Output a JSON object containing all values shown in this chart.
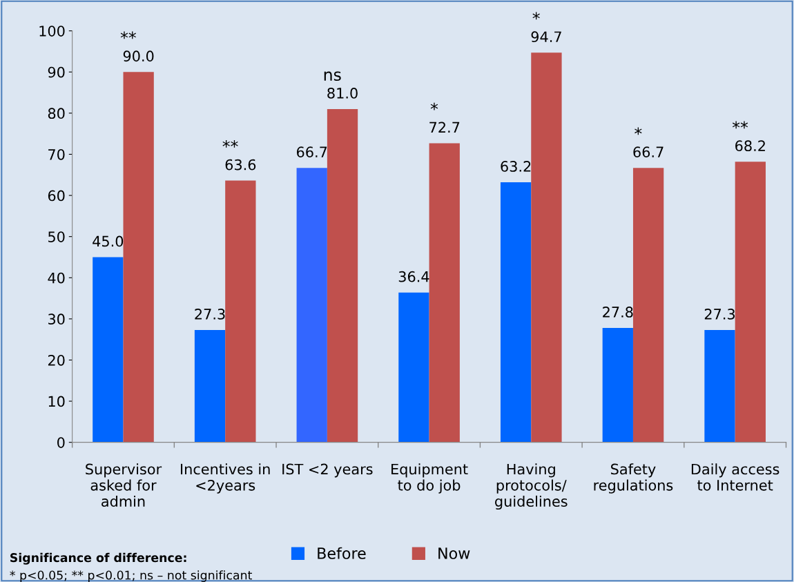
{
  "chart_data": {
    "type": "bar",
    "categories": [
      "Supervisor\nasked for\nadmin",
      "Incentives in\n<2years",
      "IST <2 years",
      "Equipment\nto do job",
      "Having\nprotocols/\nguidelines",
      "Safety\nregulations",
      "Daily access\nto Internet"
    ],
    "series": [
      {
        "name": "Before",
        "color": "#0066ff",
        "colors": [
          "#0066ff",
          "#0066ff",
          "#3366ff",
          "#0066ff",
          "#0066ff",
          "#0066ff",
          "#0066ff"
        ],
        "values": [
          45.0,
          27.3,
          66.7,
          36.4,
          63.2,
          27.8,
          27.3
        ],
        "value_labels": [
          "45.0",
          "27.3",
          "66.7",
          "36.4",
          "63.2",
          "27.8",
          "27.3"
        ]
      },
      {
        "name": "Now",
        "color": "#c0504d",
        "values": [
          90.0,
          63.6,
          81.0,
          72.7,
          94.7,
          66.7,
          68.2
        ],
        "value_labels": [
          "90.0",
          "63.6",
          "81.0",
          "72.7",
          "94.7",
          "66.7",
          "68.2"
        ]
      }
    ],
    "ylim": [
      0,
      100
    ],
    "yticks": [
      0,
      10,
      20,
      30,
      40,
      50,
      60,
      70,
      80,
      90,
      100
    ],
    "grid": false,
    "legend": "bottom",
    "annotations": [
      "**",
      "**",
      "ns",
      "*",
      "*",
      "*",
      "**",
      "Significance of difference:",
      "* p<0.05; ** p<0.01; ns – not significant"
    ]
  }
}
